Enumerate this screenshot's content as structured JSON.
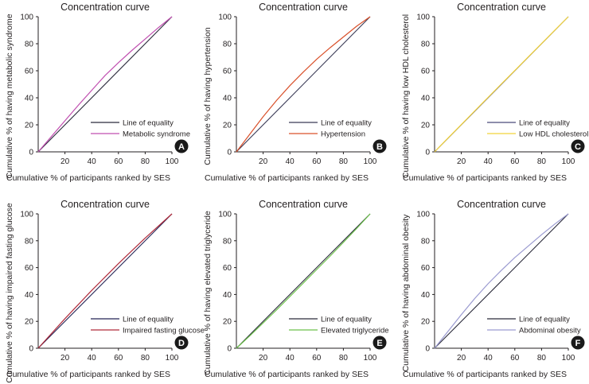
{
  "chart_data": [
    {
      "type": "line",
      "title": "Concentration curve",
      "xlabel": "Cumulative % of participants ranked by SES",
      "ylabel": "Cumulative % of having metabolic syndrome",
      "x_ticks": [
        "20",
        "40",
        "60",
        "80",
        "100"
      ],
      "y_ticks": [
        "0",
        "20",
        "40",
        "60",
        "80",
        "100"
      ],
      "xlim": [
        0,
        100
      ],
      "ylim": [
        0,
        100
      ],
      "panel_label": "A",
      "legend_position": "bottom-right",
      "series": [
        {
          "name": "Line of equality",
          "color": "#2b2b3c",
          "x": [
            0,
            100
          ],
          "y": [
            0,
            100
          ]
        },
        {
          "name": "Metabolic syndrome",
          "color": "#c04fb0",
          "x": [
            0,
            10,
            20,
            30,
            40,
            50,
            60,
            70,
            80,
            90,
            100
          ],
          "y": [
            0,
            11.5,
            23,
            34.5,
            45.5,
            56.5,
            66,
            75,
            83.5,
            92,
            100
          ]
        }
      ]
    },
    {
      "type": "line",
      "title": "Concentration curve",
      "xlabel": "Cumulative % of participants ranked by SES",
      "ylabel": "Cumulative % of having hypertension",
      "x_ticks": [
        "20",
        "40",
        "60",
        "80",
        "100"
      ],
      "y_ticks": [
        "0",
        "20",
        "40",
        "60",
        "80",
        "100"
      ],
      "xlim": [
        0,
        100
      ],
      "ylim": [
        0,
        100
      ],
      "panel_label": "B",
      "legend_position": "bottom-right",
      "series": [
        {
          "name": "Line of equality",
          "color": "#3a3a56",
          "x": [
            0,
            100
          ],
          "y": [
            0,
            100
          ]
        },
        {
          "name": "Hypertension",
          "color": "#d9502a",
          "x": [
            0,
            10,
            20,
            30,
            40,
            50,
            60,
            70,
            80,
            90,
            100
          ],
          "y": [
            0,
            13,
            26,
            38,
            49,
            59,
            68.5,
            77,
            85,
            93,
            100
          ]
        }
      ]
    },
    {
      "type": "line",
      "title": "Concentration curve",
      "xlabel": "Cumulative % of participants ranked by SES",
      "ylabel": "Cumulative % of having low HDL cholesterol",
      "x_ticks": [
        "20",
        "40",
        "60",
        "80",
        "100"
      ],
      "y_ticks": [
        "0",
        "20",
        "40",
        "60",
        "80",
        "100"
      ],
      "xlim": [
        0,
        100
      ],
      "ylim": [
        0,
        100
      ],
      "panel_label": "C",
      "legend_position": "bottom-right",
      "series": [
        {
          "name": "Line of equality",
          "color": "#4a4a7a",
          "x": [
            0,
            100
          ],
          "y": [
            0,
            100
          ]
        },
        {
          "name": "Low HDL cholesterol",
          "color": "#f2d33a",
          "x": [
            0,
            10,
            20,
            30,
            40,
            50,
            60,
            70,
            80,
            90,
            100
          ],
          "y": [
            0,
            10.2,
            20.2,
            30.3,
            40.3,
            50.3,
            60.2,
            70.2,
            80.1,
            90.1,
            100
          ]
        }
      ]
    },
    {
      "type": "line",
      "title": "Concentration curve",
      "xlabel": "Cumulative % of participants ranked by SES",
      "ylabel": "Cumulative % of having impaired fasting glucose",
      "x_ticks": [
        "20",
        "40",
        "60",
        "80",
        "100"
      ],
      "y_ticks": [
        "0",
        "20",
        "40",
        "60",
        "80",
        "100"
      ],
      "xlim": [
        0,
        100
      ],
      "ylim": [
        0,
        100
      ],
      "panel_label": "D",
      "legend_position": "bottom-right",
      "series": [
        {
          "name": "Line of equality",
          "color": "#232355",
          "x": [
            0,
            100
          ],
          "y": [
            0,
            100
          ]
        },
        {
          "name": "Impaired fasting glucose",
          "color": "#b02a3a",
          "x": [
            0,
            10,
            20,
            30,
            40,
            50,
            60,
            70,
            80,
            90,
            100
          ],
          "y": [
            0,
            11,
            22,
            32.5,
            43,
            53,
            63,
            72.5,
            82,
            91,
            100
          ]
        }
      ]
    },
    {
      "type": "line",
      "title": "Concentration curve",
      "xlabel": "Cumulative % of participants ranked by SES",
      "ylabel": "Cumulative % of having elevated triglyceride",
      "x_ticks": [
        "20",
        "40",
        "60",
        "80",
        "100"
      ],
      "y_ticks": [
        "0",
        "20",
        "40",
        "60",
        "80",
        "100"
      ],
      "xlim": [
        0,
        100
      ],
      "ylim": [
        0,
        100
      ],
      "panel_label": "E",
      "legend_position": "bottom-right",
      "series": [
        {
          "name": "Line of equality",
          "color": "#2a2a3a",
          "x": [
            0,
            100
          ],
          "y": [
            0,
            100
          ]
        },
        {
          "name": "Elevated triglyceride",
          "color": "#6cc04a",
          "x": [
            0,
            10,
            20,
            30,
            40,
            50,
            60,
            70,
            80,
            90,
            100
          ],
          "y": [
            0,
            9.2,
            18.8,
            28.5,
            38.5,
            48.5,
            58.5,
            68.5,
            78.8,
            89.2,
            100
          ]
        }
      ]
    },
    {
      "type": "line",
      "title": "Concentration curve",
      "xlabel": "Cumulative % of participants ranked by SES",
      "ylabel": "Cumulative % of having abdominal obesity",
      "x_ticks": [
        "20",
        "40",
        "60",
        "80",
        "100"
      ],
      "y_ticks": [
        "0",
        "20",
        "40",
        "60",
        "80",
        "100"
      ],
      "xlim": [
        0,
        100
      ],
      "ylim": [
        0,
        100
      ],
      "panel_label": "F",
      "legend_position": "bottom-right",
      "series": [
        {
          "name": "Line of equality",
          "color": "#2a2a3a",
          "x": [
            0,
            100
          ],
          "y": [
            0,
            100
          ]
        },
        {
          "name": "Abdominal obesity",
          "color": "#9a9ad0",
          "x": [
            0,
            10,
            20,
            30,
            40,
            50,
            60,
            70,
            80,
            90,
            100
          ],
          "y": [
            0,
            12.5,
            25,
            37,
            48,
            58,
            67.5,
            76,
            84.5,
            92.5,
            100
          ]
        }
      ]
    }
  ],
  "badge_color": "#1a1a1a"
}
